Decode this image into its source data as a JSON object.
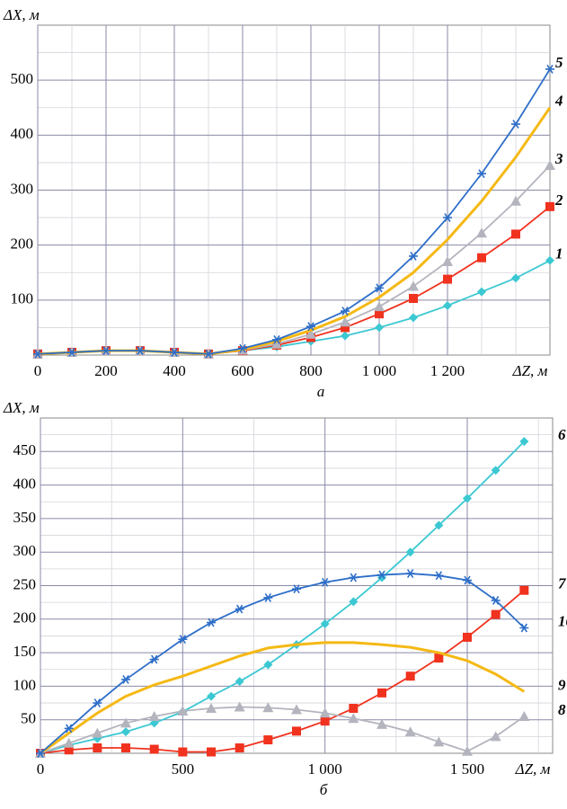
{
  "chart_data": [
    {
      "type": "line",
      "caption": "а",
      "ylabel": "ΔX, м",
      "xlabel": "ΔZ, м",
      "x": [
        0,
        100,
        200,
        300,
        400,
        500,
        600,
        700,
        800,
        900,
        1000,
        1100,
        1200,
        1300,
        1400,
        1500
      ],
      "xlim": [
        0,
        1500
      ],
      "ylim": [
        0,
        600
      ],
      "xticks": [
        0,
        200,
        400,
        600,
        800,
        {
          "value": 1000,
          "label": "1 000"
        },
        {
          "value": 1200,
          "label": "1 200"
        }
      ],
      "yticks": [
        100,
        200,
        300,
        400,
        500
      ],
      "grid": true,
      "minor_grid": true,
      "series": [
        {
          "name": "1",
          "color": "#3cc8d2",
          "marker": "diamond",
          "values": [
            2,
            5,
            8,
            8,
            5,
            2,
            8,
            15,
            25,
            35,
            50,
            68,
            90,
            115,
            140,
            172
          ]
        },
        {
          "name": "2",
          "color": "#f0321e",
          "marker": "square",
          "values": [
            2,
            5,
            8,
            8,
            5,
            2,
            8,
            18,
            32,
            50,
            75,
            103,
            138,
            177,
            220,
            270
          ]
        },
        {
          "name": "3",
          "color": "#b4b4be",
          "marker": "triangle",
          "values": [
            2,
            5,
            8,
            8,
            5,
            2,
            9,
            20,
            38,
            60,
            88,
            125,
            170,
            222,
            280,
            345
          ]
        },
        {
          "name": "4",
          "color": "#f5b914",
          "marker": "none",
          "values": [
            2,
            5,
            8,
            8,
            5,
            2,
            10,
            25,
            45,
            70,
            105,
            150,
            210,
            280,
            360,
            450
          ]
        },
        {
          "name": "5",
          "color": "#2d6ec8",
          "marker": "star",
          "values": [
            2,
            5,
            8,
            8,
            5,
            2,
            12,
            28,
            52,
            80,
            122,
            180,
            250,
            330,
            420,
            520
          ]
        }
      ]
    },
    {
      "type": "line",
      "caption": "б",
      "ylabel": "ΔX, м",
      "xlabel": "ΔZ, м",
      "x": [
        0,
        100,
        200,
        300,
        400,
        500,
        600,
        700,
        800,
        900,
        1000,
        1100,
        1200,
        1300,
        1400,
        1500,
        1600,
        1700
      ],
      "xlim": [
        0,
        1800
      ],
      "ylim": [
        0,
        500
      ],
      "xticks": [
        0,
        500,
        {
          "value": 1000,
          "label": "1 000"
        },
        {
          "value": 1500,
          "label": "1 500"
        }
      ],
      "yticks": [
        50,
        100,
        150,
        200,
        250,
        300,
        350,
        400,
        450
      ],
      "grid": true,
      "minor_grid": true,
      "series": [
        {
          "name": "6",
          "color": "#3cc8d2",
          "marker": "diamond",
          "values": [
            0,
            12,
            22,
            32,
            45,
            62,
            85,
            107,
            132,
            162,
            193,
            226,
            262,
            300,
            340,
            380,
            422,
            465
          ]
        },
        {
          "name": "7",
          "color": "#f0321e",
          "marker": "square",
          "values": [
            0,
            5,
            8,
            8,
            6,
            2,
            2,
            8,
            20,
            33,
            48,
            67,
            90,
            115,
            142,
            173,
            207,
            243
          ]
        },
        {
          "name": "8",
          "color": "#b4b4be",
          "marker": "triangle",
          "values": [
            0,
            15,
            30,
            45,
            55,
            63,
            67,
            69,
            68,
            65,
            60,
            52,
            43,
            32,
            17,
            3,
            25,
            55
          ]
        },
        {
          "name": "9",
          "color": "#f5b914",
          "marker": "none",
          "values": [
            0,
            30,
            60,
            85,
            102,
            115,
            130,
            145,
            157,
            162,
            165,
            165,
            162,
            158,
            150,
            138,
            118,
            92
          ]
        },
        {
          "name": "10",
          "color": "#2d6ec8",
          "marker": "star",
          "values": [
            0,
            37,
            75,
            110,
            140,
            170,
            195,
            215,
            232,
            245,
            255,
            262,
            266,
            268,
            265,
            258,
            228,
            187
          ]
        }
      ]
    }
  ]
}
